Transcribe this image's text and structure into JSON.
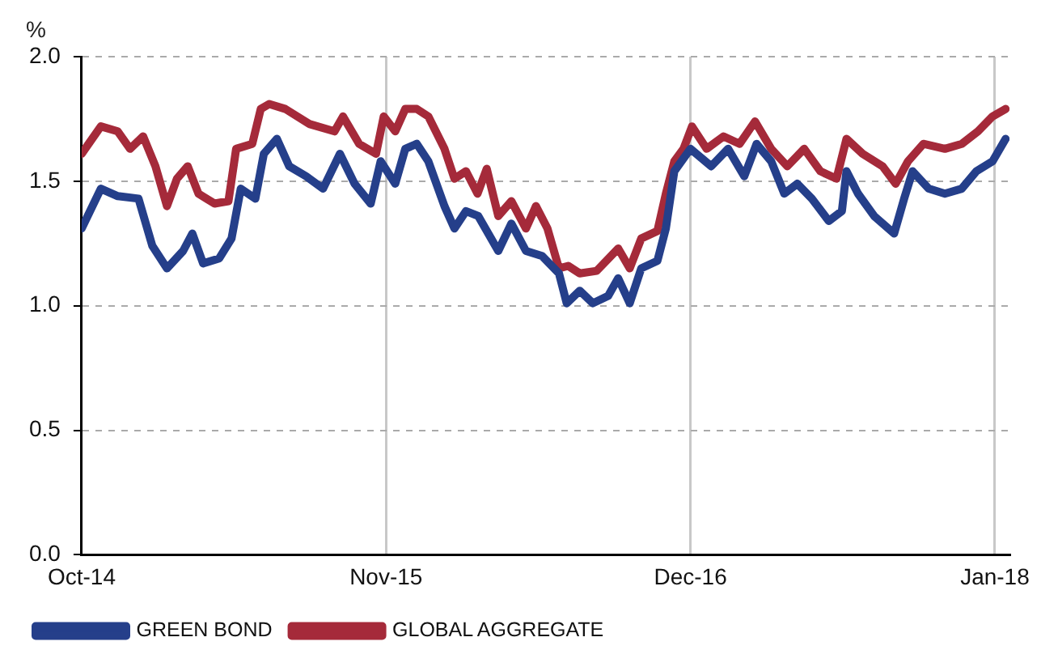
{
  "chart_data": {
    "type": "line",
    "ylabel": "%",
    "xlim": [
      "2014-10-01",
      "2018-01-20"
    ],
    "xticks": [
      {
        "value": "2014-10-01",
        "label": "Oct-14"
      },
      {
        "value": "2015-11-01",
        "label": "Nov-15"
      },
      {
        "value": "2016-12-01",
        "label": "Dec-16"
      },
      {
        "value": "2018-01-01",
        "label": "Jan-18"
      }
    ],
    "ylim": [
      0,
      2
    ],
    "yticks": [
      {
        "value": 0,
        "label": "0.0"
      },
      {
        "value": 0.5,
        "label": "0.5"
      },
      {
        "value": 1,
        "label": "1.0"
      },
      {
        "value": 1.5,
        "label": "1.5"
      },
      {
        "value": 2,
        "label": "2.0"
      }
    ],
    "grid": true,
    "legend": "bottom",
    "marker": "none",
    "line_style": "solid",
    "series": [
      {
        "name": "GREEN BOND",
        "color": "#253f8a",
        "x": [
          "2014-10-01",
          "2014-10-26",
          "2014-11-17",
          "2014-12-14",
          "2015-01-01",
          "2015-01-20",
          "2015-02-10",
          "2015-02-22",
          "2015-03-08",
          "2015-03-29",
          "2015-04-14",
          "2015-04-26",
          "2015-05-15",
          "2015-05-26",
          "2015-06-12",
          "2015-06-28",
          "2015-07-20",
          "2015-08-11",
          "2015-09-02",
          "2015-09-21",
          "2015-10-12",
          "2015-10-25",
          "2015-11-13",
          "2015-11-26",
          "2015-12-11",
          "2015-12-26",
          "2016-01-16",
          "2016-01-29",
          "2016-02-13",
          "2016-02-29",
          "2016-03-26",
          "2016-04-12",
          "2016-05-01",
          "2016-05-22",
          "2016-06-13",
          "2016-06-23",
          "2016-07-10",
          "2016-07-27",
          "2016-08-16",
          "2016-08-29",
          "2016-09-13",
          "2016-09-28",
          "2016-10-19",
          "2016-10-30",
          "2016-11-10",
          "2016-12-01",
          "2016-12-28",
          "2017-01-19",
          "2017-02-09",
          "2017-02-25",
          "2017-03-16",
          "2017-04-02",
          "2017-04-19",
          "2017-05-08",
          "2017-05-30",
          "2017-06-16",
          "2017-06-22",
          "2017-07-07",
          "2017-07-28",
          "2017-08-23",
          "2017-09-05",
          "2017-09-16",
          "2017-10-07",
          "2017-10-28",
          "2017-11-19",
          "2017-12-08",
          "2017-12-29",
          "2018-01-15"
        ],
        "values": [
          1.31,
          1.47,
          1.44,
          1.43,
          1.24,
          1.15,
          1.22,
          1.29,
          1.17,
          1.19,
          1.27,
          1.47,
          1.43,
          1.61,
          1.67,
          1.56,
          1.52,
          1.47,
          1.61,
          1.49,
          1.41,
          1.58,
          1.49,
          1.63,
          1.65,
          1.58,
          1.4,
          1.31,
          1.38,
          1.36,
          1.22,
          1.33,
          1.22,
          1.2,
          1.13,
          1.01,
          1.06,
          1.01,
          1.04,
          1.11,
          1.01,
          1.15,
          1.18,
          1.31,
          1.54,
          1.63,
          1.56,
          1.63,
          1.52,
          1.65,
          1.58,
          1.45,
          1.49,
          1.43,
          1.34,
          1.38,
          1.54,
          1.45,
          1.36,
          1.29,
          1.43,
          1.54,
          1.47,
          1.45,
          1.47,
          1.54,
          1.58,
          1.67
        ]
      },
      {
        "name": "GLOBAL AGGREGATE",
        "color": "#a52a3a",
        "x": [
          "2014-10-01",
          "2014-10-26",
          "2014-11-17",
          "2014-12-03",
          "2014-12-20",
          "2015-01-05",
          "2015-01-20",
          "2015-02-02",
          "2015-02-16",
          "2015-03-02",
          "2015-03-23",
          "2015-04-10",
          "2015-04-20",
          "2015-05-11",
          "2015-05-22",
          "2015-06-02",
          "2015-06-23",
          "2015-07-24",
          "2015-08-26",
          "2015-09-06",
          "2015-09-27",
          "2015-10-19",
          "2015-10-29",
          "2015-11-13",
          "2015-11-26",
          "2015-12-11",
          "2015-12-26",
          "2016-01-16",
          "2016-01-29",
          "2016-02-13",
          "2016-02-28",
          "2016-03-11",
          "2016-03-26",
          "2016-04-12",
          "2016-05-01",
          "2016-05-14",
          "2016-05-29",
          "2016-06-13",
          "2016-06-25",
          "2016-07-10",
          "2016-08-01",
          "2016-08-29",
          "2016-09-13",
          "2016-09-28",
          "2016-10-19",
          "2016-10-30",
          "2016-11-10",
          "2016-11-22",
          "2016-12-03",
          "2016-12-22",
          "2017-01-13",
          "2017-02-03",
          "2017-02-23",
          "2017-03-16",
          "2017-04-06",
          "2017-04-28",
          "2017-05-19",
          "2017-06-09",
          "2017-06-22",
          "2017-07-13",
          "2017-08-08",
          "2017-08-25",
          "2017-09-10",
          "2017-09-30",
          "2017-10-28",
          "2017-11-19",
          "2017-12-10",
          "2017-12-29",
          "2018-01-15"
        ],
        "values": [
          1.61,
          1.72,
          1.7,
          1.63,
          1.68,
          1.56,
          1.4,
          1.51,
          1.56,
          1.45,
          1.41,
          1.42,
          1.63,
          1.65,
          1.79,
          1.81,
          1.79,
          1.73,
          1.7,
          1.76,
          1.65,
          1.61,
          1.76,
          1.7,
          1.79,
          1.79,
          1.76,
          1.63,
          1.51,
          1.54,
          1.45,
          1.55,
          1.36,
          1.42,
          1.31,
          1.4,
          1.31,
          1.15,
          1.16,
          1.13,
          1.14,
          1.23,
          1.15,
          1.27,
          1.3,
          1.45,
          1.58,
          1.63,
          1.72,
          1.63,
          1.68,
          1.65,
          1.74,
          1.63,
          1.56,
          1.63,
          1.54,
          1.51,
          1.67,
          1.61,
          1.56,
          1.49,
          1.58,
          1.65,
          1.63,
          1.65,
          1.7,
          1.76,
          1.79
        ]
      }
    ]
  }
}
